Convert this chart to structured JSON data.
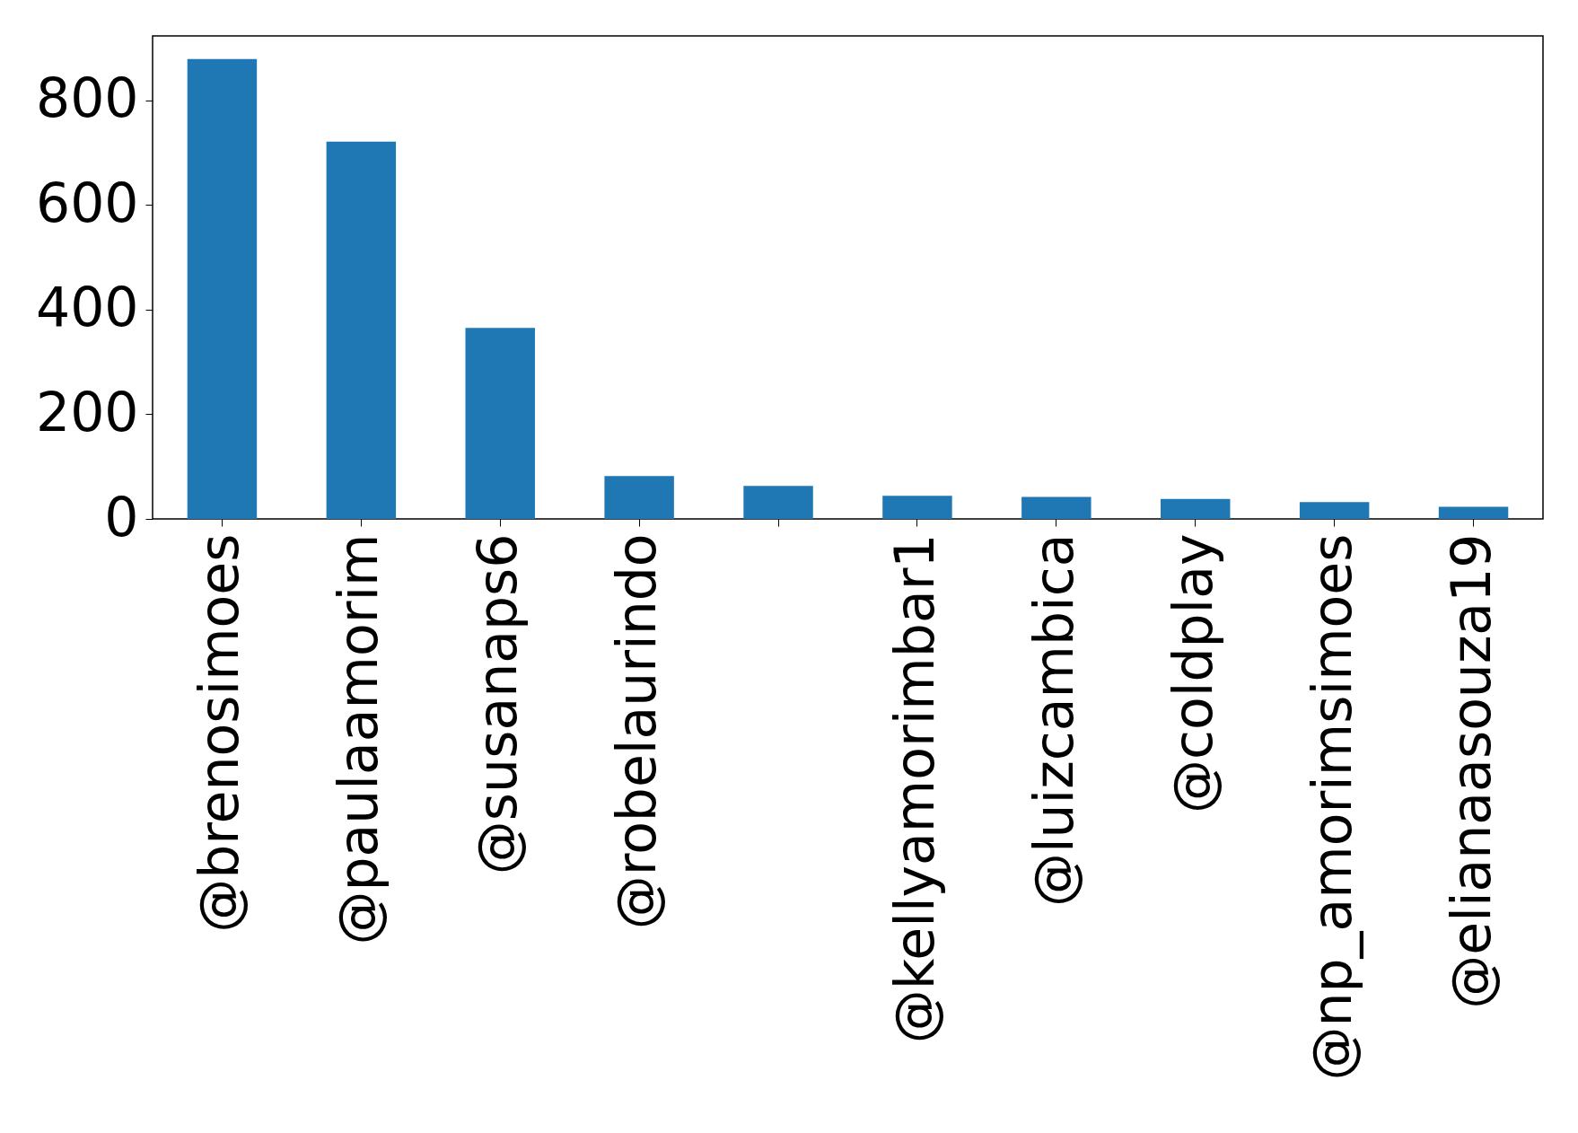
{
  "chart_data": {
    "type": "bar",
    "categories": [
      "@brenosimoes",
      "@paulaamorim",
      "@susanaps6",
      "@robelaurindo",
      null,
      "@kellyamorimbar1",
      "@luizcambica",
      "@coldplay",
      "@np_amorimsimoes",
      "@elianaasouza19"
    ],
    "values": [
      879,
      721,
      365,
      82,
      63,
      44,
      42,
      38,
      32,
      23
    ],
    "color": "#1f77b4",
    "ylim": [
      0,
      923
    ],
    "yticks": [
      0,
      200,
      400,
      600,
      800
    ]
  }
}
